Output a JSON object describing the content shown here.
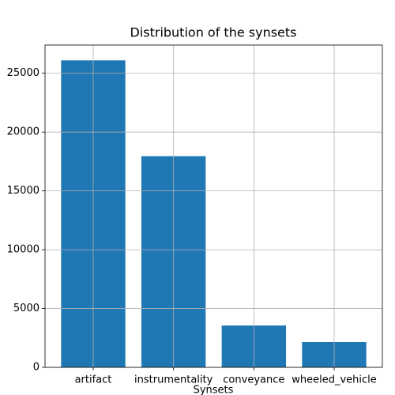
{
  "chart_data": {
    "type": "bar",
    "title": "Distribution of the synsets",
    "x_label": "Synsets",
    "categories": [
      "artifact",
      "instrumentality",
      "conveyance",
      "wheeled_vehicle"
    ],
    "values": [
      26100,
      17950,
      3560,
      2150
    ],
    "color": "#1f77b4",
    "ylim": [
      0,
      27400
    ],
    "yticks": [
      0,
      5000,
      10000,
      15000,
      20000,
      25000
    ],
    "grid": true
  }
}
